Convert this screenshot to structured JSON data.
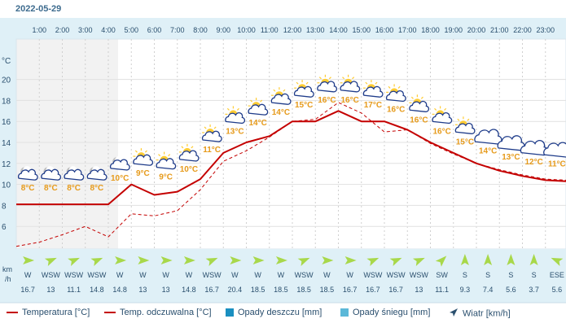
{
  "date": "2022-05-29",
  "colors": {
    "temperature": "#c40000",
    "feels_like": "#c40000",
    "rain": "#1a8fc0",
    "snow": "#5bb8d8",
    "wind": "#2a4f6e",
    "label": "#e69a1a",
    "wind_arrow": "#a8d84a"
  },
  "chart_data": {
    "type": "line",
    "x": [
      "1:00",
      "2:00",
      "3:00",
      "4:00",
      "5:00",
      "6:00",
      "7:00",
      "8:00",
      "9:00",
      "10:00",
      "11:00",
      "12:00",
      "13:00",
      "14:00",
      "15:00",
      "16:00",
      "17:00",
      "18:00",
      "19:00",
      "20:00",
      "21:00",
      "22:00",
      "23:00"
    ],
    "yunit": "°C",
    "yticks": [
      6,
      8,
      10,
      12,
      14,
      16,
      18,
      20
    ],
    "ylim": [
      4,
      22
    ],
    "series": [
      {
        "name": "Temperatura [°C]",
        "style": "solid",
        "values": [
          8.1,
          8.1,
          8.1,
          8.1,
          10.0,
          9.0,
          9.3,
          10.5,
          13.0,
          14.0,
          14.6,
          16.0,
          16.0,
          17.0,
          16.0,
          16.0,
          15.2,
          14.0,
          13.0,
          12.0,
          11.3,
          10.8,
          10.4
        ]
      },
      {
        "name": "Temp. odczuwalna [°C]",
        "style": "dashed",
        "values": [
          4.5,
          5.2,
          6.0,
          5.0,
          7.2,
          7.0,
          7.5,
          9.5,
          12.2,
          13.2,
          14.5,
          16.0,
          16.2,
          17.8,
          16.8,
          15.0,
          15.2,
          13.9,
          12.9,
          12.0,
          11.4,
          10.9,
          10.5
        ]
      }
    ],
    "temp_labels": [
      "8°C",
      "8°C",
      "8°C",
      "8°C",
      "10°C",
      "9°C",
      "9°C",
      "10°C",
      "11°C",
      "13°C",
      "14°C",
      "14°C",
      "15°C",
      "16°C",
      "16°C",
      "17°C",
      "16°C",
      "16°C",
      "16°C",
      "15°C",
      "14°C",
      "13°C",
      "12°C",
      "11°C"
    ],
    "weather_icons": [
      "moon-cloud-icon",
      "moon-cloud-icon",
      "moon-cloud-icon",
      "moon-cloud-icon",
      "moon-cloud-icon",
      "sun-cloud-icon",
      "sun-cloud-icon",
      "sun-cloud-icon",
      "sun-cloud-icon",
      "sun-cloud-icon",
      "sun-cloud-icon",
      "sun-cloud-icon",
      "sun-cloud-icon",
      "sun-cloud-icon",
      "sun-cloud-icon",
      "sun-cloud-icon",
      "sun-cloud-icon",
      "sun-cloud-icon",
      "sun-cloud-icon",
      "sun-cloud-icon",
      "cloud-icon",
      "cloud-icon",
      "cloud-icon",
      "cloud-icon"
    ],
    "wind_unit": "km/h",
    "wind_dir": [
      "W",
      "WSW",
      "WSW",
      "WSW",
      "W",
      "W",
      "W",
      "W",
      "WSW",
      "W",
      "W",
      "W",
      "WSW",
      "W",
      "W",
      "WSW",
      "WSW",
      "WSW",
      "SW",
      "S",
      "S",
      "S",
      "S",
      "ESE"
    ],
    "wind_speed": [
      "16.7",
      "13",
      "11.1",
      "14.8",
      "14.8",
      "13",
      "13",
      "14.8",
      "16.7",
      "20.4",
      "18.5",
      "18.5",
      "18.5",
      "18.5",
      "16.7",
      "16.7",
      "16.7",
      "13",
      "11.1",
      "9.3",
      "7.4",
      "5.6",
      "3.7",
      "5.6"
    ],
    "legend": [
      {
        "label": "Temperatura [°C]",
        "kind": "line"
      },
      {
        "label": "Temp. odczuwalna [°C]",
        "kind": "line"
      },
      {
        "label": "Opady deszczu [mm]",
        "kind": "box"
      },
      {
        "label": "Opady śniegu [mm]",
        "kind": "box"
      },
      {
        "label": "Wiatr [km/h]",
        "kind": "arrow"
      }
    ]
  }
}
